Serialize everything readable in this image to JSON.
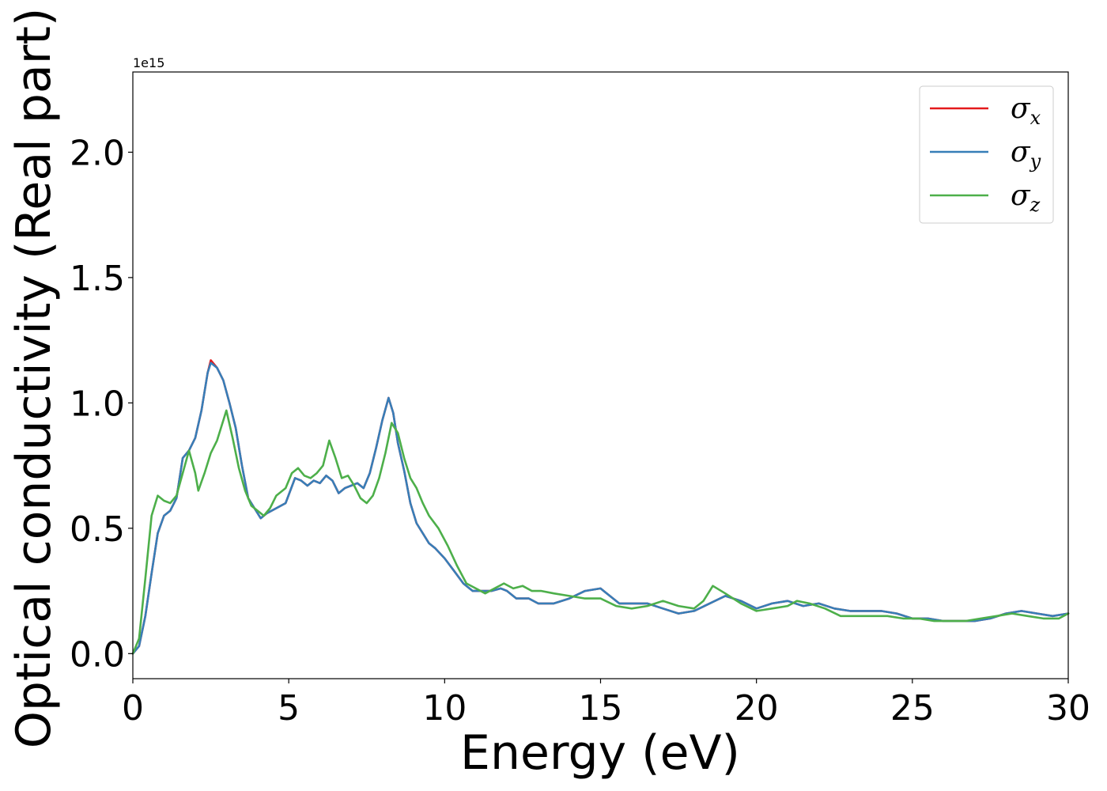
{
  "chart_data": {
    "type": "line",
    "title": "",
    "xlabel": "Energy (eV)",
    "ylabel": "Optical conductivity (Real part)",
    "y_offset_label": "1e15",
    "xlim": [
      0,
      30
    ],
    "ylim": [
      -0.1,
      2.32
    ],
    "x_ticks": [
      0,
      5,
      10,
      15,
      20,
      25,
      30
    ],
    "x_tick_labels": [
      "0",
      "5",
      "10",
      "15",
      "20",
      "25",
      "30"
    ],
    "y_ticks": [
      0.0,
      0.5,
      1.0,
      1.5,
      2.0
    ],
    "y_tick_labels": [
      "0.0",
      "0.5",
      "1.0",
      "1.5",
      "2.0"
    ],
    "grid": false,
    "legend_position": "top-right",
    "series": [
      {
        "name": "σ",
        "subscript": "x",
        "color": "#e41a1c",
        "points": [
          [
            0,
            0
          ],
          [
            0.2,
            0.03
          ],
          [
            0.4,
            0.15
          ],
          [
            0.6,
            0.32
          ],
          [
            0.8,
            0.48
          ],
          [
            1.0,
            0.55
          ],
          [
            1.2,
            0.57
          ],
          [
            1.4,
            0.62
          ],
          [
            1.6,
            0.78
          ],
          [
            1.8,
            0.81
          ],
          [
            2.0,
            0.86
          ],
          [
            2.2,
            0.97
          ],
          [
            2.4,
            1.12
          ],
          [
            2.5,
            1.17
          ],
          [
            2.7,
            1.14
          ],
          [
            2.9,
            1.09
          ],
          [
            3.1,
            1.0
          ],
          [
            3.3,
            0.9
          ],
          [
            3.5,
            0.75
          ],
          [
            3.7,
            0.62
          ],
          [
            3.9,
            0.58
          ],
          [
            4.1,
            0.54
          ],
          [
            4.3,
            0.56
          ],
          [
            4.6,
            0.58
          ],
          [
            4.9,
            0.6
          ],
          [
            5.2,
            0.7
          ],
          [
            5.4,
            0.69
          ],
          [
            5.6,
            0.67
          ],
          [
            5.8,
            0.69
          ],
          [
            6.0,
            0.68
          ],
          [
            6.2,
            0.71
          ],
          [
            6.4,
            0.69
          ],
          [
            6.6,
            0.64
          ],
          [
            6.8,
            0.66
          ],
          [
            7.0,
            0.67
          ],
          [
            7.2,
            0.68
          ],
          [
            7.4,
            0.66
          ],
          [
            7.6,
            0.72
          ],
          [
            7.8,
            0.82
          ],
          [
            8.0,
            0.93
          ],
          [
            8.2,
            1.02
          ],
          [
            8.35,
            0.96
          ],
          [
            8.5,
            0.84
          ],
          [
            8.7,
            0.73
          ],
          [
            8.9,
            0.6
          ],
          [
            9.1,
            0.52
          ],
          [
            9.3,
            0.48
          ],
          [
            9.5,
            0.44
          ],
          [
            9.7,
            0.42
          ],
          [
            10.0,
            0.38
          ],
          [
            10.3,
            0.33
          ],
          [
            10.6,
            0.28
          ],
          [
            10.9,
            0.25
          ],
          [
            11.2,
            0.25
          ],
          [
            11.5,
            0.25
          ],
          [
            11.8,
            0.26
          ],
          [
            12.0,
            0.25
          ],
          [
            12.3,
            0.22
          ],
          [
            12.7,
            0.22
          ],
          [
            13.0,
            0.2
          ],
          [
            13.5,
            0.2
          ],
          [
            14.0,
            0.22
          ],
          [
            14.5,
            0.25
          ],
          [
            15.0,
            0.26
          ],
          [
            15.3,
            0.23
          ],
          [
            15.6,
            0.2
          ],
          [
            16.0,
            0.2
          ],
          [
            16.5,
            0.2
          ],
          [
            17.0,
            0.18
          ],
          [
            17.5,
            0.16
          ],
          [
            18.0,
            0.17
          ],
          [
            18.5,
            0.2
          ],
          [
            19.0,
            0.23
          ],
          [
            19.5,
            0.21
          ],
          [
            20.0,
            0.18
          ],
          [
            20.5,
            0.2
          ],
          [
            21.0,
            0.21
          ],
          [
            21.5,
            0.19
          ],
          [
            22.0,
            0.2
          ],
          [
            22.5,
            0.18
          ],
          [
            23.0,
            0.17
          ],
          [
            23.5,
            0.17
          ],
          [
            24.0,
            0.17
          ],
          [
            24.5,
            0.16
          ],
          [
            25.0,
            0.14
          ],
          [
            25.5,
            0.14
          ],
          [
            26.0,
            0.13
          ],
          [
            26.5,
            0.13
          ],
          [
            27.0,
            0.13
          ],
          [
            27.5,
            0.14
          ],
          [
            28.0,
            0.16
          ],
          [
            28.5,
            0.17
          ],
          [
            29.0,
            0.16
          ],
          [
            29.5,
            0.15
          ],
          [
            30.0,
            0.16
          ]
        ]
      },
      {
        "name": "σ",
        "subscript": "y",
        "color": "#377eb8",
        "points": [
          [
            0,
            0
          ],
          [
            0.2,
            0.03
          ],
          [
            0.4,
            0.15
          ],
          [
            0.6,
            0.32
          ],
          [
            0.8,
            0.48
          ],
          [
            1.0,
            0.55
          ],
          [
            1.2,
            0.57
          ],
          [
            1.4,
            0.62
          ],
          [
            1.6,
            0.78
          ],
          [
            1.8,
            0.81
          ],
          [
            2.0,
            0.86
          ],
          [
            2.2,
            0.97
          ],
          [
            2.4,
            1.12
          ],
          [
            2.5,
            1.16
          ],
          [
            2.7,
            1.14
          ],
          [
            2.9,
            1.09
          ],
          [
            3.1,
            1.0
          ],
          [
            3.3,
            0.9
          ],
          [
            3.5,
            0.75
          ],
          [
            3.7,
            0.62
          ],
          [
            3.9,
            0.58
          ],
          [
            4.1,
            0.54
          ],
          [
            4.3,
            0.56
          ],
          [
            4.6,
            0.58
          ],
          [
            4.9,
            0.6
          ],
          [
            5.2,
            0.7
          ],
          [
            5.4,
            0.69
          ],
          [
            5.6,
            0.67
          ],
          [
            5.8,
            0.69
          ],
          [
            6.0,
            0.68
          ],
          [
            6.2,
            0.71
          ],
          [
            6.4,
            0.69
          ],
          [
            6.6,
            0.64
          ],
          [
            6.8,
            0.66
          ],
          [
            7.0,
            0.67
          ],
          [
            7.2,
            0.68
          ],
          [
            7.4,
            0.66
          ],
          [
            7.6,
            0.72
          ],
          [
            7.8,
            0.82
          ],
          [
            8.0,
            0.93
          ],
          [
            8.2,
            1.02
          ],
          [
            8.35,
            0.96
          ],
          [
            8.5,
            0.84
          ],
          [
            8.7,
            0.73
          ],
          [
            8.9,
            0.6
          ],
          [
            9.1,
            0.52
          ],
          [
            9.3,
            0.48
          ],
          [
            9.5,
            0.44
          ],
          [
            9.7,
            0.42
          ],
          [
            10.0,
            0.38
          ],
          [
            10.3,
            0.33
          ],
          [
            10.6,
            0.28
          ],
          [
            10.9,
            0.25
          ],
          [
            11.2,
            0.25
          ],
          [
            11.5,
            0.25
          ],
          [
            11.8,
            0.26
          ],
          [
            12.0,
            0.25
          ],
          [
            12.3,
            0.22
          ],
          [
            12.7,
            0.22
          ],
          [
            13.0,
            0.2
          ],
          [
            13.5,
            0.2
          ],
          [
            14.0,
            0.22
          ],
          [
            14.5,
            0.25
          ],
          [
            15.0,
            0.26
          ],
          [
            15.3,
            0.23
          ],
          [
            15.6,
            0.2
          ],
          [
            16.0,
            0.2
          ],
          [
            16.5,
            0.2
          ],
          [
            17.0,
            0.18
          ],
          [
            17.5,
            0.16
          ],
          [
            18.0,
            0.17
          ],
          [
            18.5,
            0.2
          ],
          [
            19.0,
            0.23
          ],
          [
            19.5,
            0.21
          ],
          [
            20.0,
            0.18
          ],
          [
            20.5,
            0.2
          ],
          [
            21.0,
            0.21
          ],
          [
            21.5,
            0.19
          ],
          [
            22.0,
            0.2
          ],
          [
            22.5,
            0.18
          ],
          [
            23.0,
            0.17
          ],
          [
            23.5,
            0.17
          ],
          [
            24.0,
            0.17
          ],
          [
            24.5,
            0.16
          ],
          [
            25.0,
            0.14
          ],
          [
            25.5,
            0.14
          ],
          [
            26.0,
            0.13
          ],
          [
            26.5,
            0.13
          ],
          [
            27.0,
            0.13
          ],
          [
            27.5,
            0.14
          ],
          [
            28.0,
            0.16
          ],
          [
            28.5,
            0.17
          ],
          [
            29.0,
            0.16
          ],
          [
            29.5,
            0.15
          ],
          [
            30.0,
            0.16
          ]
        ]
      },
      {
        "name": "σ",
        "subscript": "z",
        "color": "#4daf4a",
        "points": [
          [
            0,
            0
          ],
          [
            0.2,
            0.06
          ],
          [
            0.4,
            0.3
          ],
          [
            0.6,
            0.55
          ],
          [
            0.8,
            0.63
          ],
          [
            1.0,
            0.61
          ],
          [
            1.2,
            0.6
          ],
          [
            1.4,
            0.63
          ],
          [
            1.6,
            0.72
          ],
          [
            1.8,
            0.81
          ],
          [
            2.0,
            0.72
          ],
          [
            2.1,
            0.65
          ],
          [
            2.3,
            0.72
          ],
          [
            2.5,
            0.8
          ],
          [
            2.7,
            0.85
          ],
          [
            2.9,
            0.93
          ],
          [
            3.0,
            0.97
          ],
          [
            3.2,
            0.86
          ],
          [
            3.4,
            0.74
          ],
          [
            3.6,
            0.65
          ],
          [
            3.8,
            0.59
          ],
          [
            4.0,
            0.57
          ],
          [
            4.2,
            0.55
          ],
          [
            4.4,
            0.58
          ],
          [
            4.6,
            0.63
          ],
          [
            4.9,
            0.66
          ],
          [
            5.1,
            0.72
          ],
          [
            5.3,
            0.74
          ],
          [
            5.5,
            0.71
          ],
          [
            5.7,
            0.7
          ],
          [
            5.9,
            0.72
          ],
          [
            6.1,
            0.75
          ],
          [
            6.3,
            0.85
          ],
          [
            6.5,
            0.78
          ],
          [
            6.7,
            0.7
          ],
          [
            6.9,
            0.71
          ],
          [
            7.1,
            0.67
          ],
          [
            7.3,
            0.62
          ],
          [
            7.5,
            0.6
          ],
          [
            7.7,
            0.63
          ],
          [
            7.9,
            0.7
          ],
          [
            8.1,
            0.8
          ],
          [
            8.3,
            0.92
          ],
          [
            8.5,
            0.88
          ],
          [
            8.7,
            0.78
          ],
          [
            8.9,
            0.7
          ],
          [
            9.1,
            0.66
          ],
          [
            9.3,
            0.6
          ],
          [
            9.5,
            0.55
          ],
          [
            9.8,
            0.5
          ],
          [
            10.1,
            0.43
          ],
          [
            10.4,
            0.35
          ],
          [
            10.7,
            0.28
          ],
          [
            11.0,
            0.26
          ],
          [
            11.3,
            0.24
          ],
          [
            11.6,
            0.26
          ],
          [
            11.9,
            0.28
          ],
          [
            12.2,
            0.26
          ],
          [
            12.5,
            0.27
          ],
          [
            12.8,
            0.25
          ],
          [
            13.1,
            0.25
          ],
          [
            13.5,
            0.24
          ],
          [
            14.0,
            0.23
          ],
          [
            14.5,
            0.22
          ],
          [
            15.0,
            0.22
          ],
          [
            15.5,
            0.19
          ],
          [
            16.0,
            0.18
          ],
          [
            16.5,
            0.19
          ],
          [
            17.0,
            0.21
          ],
          [
            17.5,
            0.19
          ],
          [
            18.0,
            0.18
          ],
          [
            18.3,
            0.21
          ],
          [
            18.6,
            0.27
          ],
          [
            19.0,
            0.24
          ],
          [
            19.5,
            0.2
          ],
          [
            20.0,
            0.17
          ],
          [
            20.5,
            0.18
          ],
          [
            21.0,
            0.19
          ],
          [
            21.3,
            0.21
          ],
          [
            21.7,
            0.2
          ],
          [
            22.2,
            0.18
          ],
          [
            22.7,
            0.15
          ],
          [
            23.2,
            0.15
          ],
          [
            23.7,
            0.15
          ],
          [
            24.2,
            0.15
          ],
          [
            24.7,
            0.14
          ],
          [
            25.2,
            0.14
          ],
          [
            25.7,
            0.13
          ],
          [
            26.2,
            0.13
          ],
          [
            26.7,
            0.13
          ],
          [
            27.2,
            0.14
          ],
          [
            27.7,
            0.15
          ],
          [
            28.2,
            0.16
          ],
          [
            28.7,
            0.15
          ],
          [
            29.2,
            0.14
          ],
          [
            29.7,
            0.14
          ],
          [
            30.0,
            0.16
          ]
        ]
      }
    ]
  }
}
